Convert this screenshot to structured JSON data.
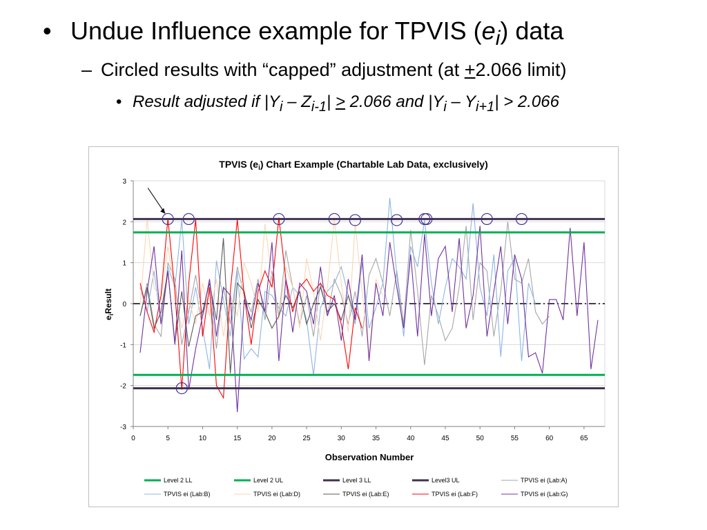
{
  "slide": {
    "bullet1": "Undue Influence example for TPVIS (",
    "bullet1_var": "e",
    "bullet1_sub": "i",
    "bullet1_end": ") data",
    "bullet2_pre": "Circled results with “capped” adjustment (at ",
    "bullet2_pm": "+",
    "bullet2_post": "2.066 limit)",
    "bullet3_a": "Result adjusted if |Y",
    "bullet3_a_sub": "i",
    "bullet3_b": " – Z",
    "bullet3_b_sub": "i-1",
    "bullet3_c": "| ",
    "bullet3_ge": ">",
    "bullet3_d": " 2.066 and |Y",
    "bullet3_d_sub": "i",
    "bullet3_e": " – Y",
    "bullet3_e_sub": "i+1",
    "bullet3_f": "| > 2.066"
  },
  "chart_data": {
    "type": "line",
    "title": "TPVIS (e",
    "title_sub": "i",
    "title_end": ") Chart Example (Chartable Lab Data, exclusively)",
    "xlabel": "Observation Number",
    "ylabel": "e",
    "ylabel_sub": "i",
    "ylabel_end": "Result",
    "xlim": [
      0,
      68
    ],
    "ylim": [
      -3,
      3
    ],
    "xticks": [
      0,
      5,
      10,
      15,
      20,
      25,
      30,
      35,
      40,
      45,
      50,
      55,
      60,
      65
    ],
    "yticks": [
      -3,
      -2,
      -1,
      0,
      1,
      2,
      3
    ],
    "grid": "horizontal",
    "legend_position": "bottom",
    "colors": {
      "level2": "#00b050",
      "level3": "#403151",
      "labA": "#a6a6a6",
      "labB": "#8db4e2",
      "labD": "#fcd5b4",
      "labE": "#595959",
      "labF": "#ff0000",
      "labG": "#7030a0",
      "circle": "#3f2d8f",
      "centerline": "#000000"
    },
    "limits": [
      {
        "name": "Level 2 LL",
        "value": -1.74
      },
      {
        "name": "Level 2 UL",
        "value": 1.74
      },
      {
        "name": "Level 3 LL",
        "value": -2.066
      },
      {
        "name": "Level3 UL",
        "value": 2.066
      }
    ],
    "series": [
      {
        "name": "TPVIS ei (Lab:A)",
        "x_start": 1,
        "values": [
          -0.3,
          0.5,
          -0.5,
          -0.8,
          1.0,
          0.6,
          -1.0,
          -0.2,
          0.7,
          -0.3,
          0.3,
          -1.1,
          0.4,
          -0.5,
          0.9,
          0.2,
          -0.2,
          0.6,
          -0.4,
          0.8,
          -0.3,
          1.3,
          0.4,
          -0.5,
          0.2,
          -0.8,
          0.5,
          -0.3,
          0.6,
          0.2,
          -0.5,
          0.3,
          -0.8,
          0.7,
          1.1,
          0.5,
          -0.3,
          0.8,
          -0.5,
          1.8,
          0.3,
          -1.5,
          0.2,
          -0.3,
          -0.9,
          -0.6,
          0.4,
          1.9,
          -0.4,
          1.0,
          0.8,
          -0.8,
          0.3,
          2.0,
          0.6,
          0.5,
          1.1,
          -0.2,
          -0.5,
          -0.3
        ]
      },
      {
        "name": "TPVIS ei (Lab:B)",
        "x_start": 1,
        "values": [
          0.4,
          -0.2,
          0.8,
          -0.5,
          0.9,
          0.4,
          2.05,
          -0.5,
          0.4,
          -0.6,
          -1.6,
          1.05,
          0.1,
          -0.8,
          0.8,
          -1.35,
          -1.1,
          -1.3,
          0.3,
          0.2,
          -0.1,
          -0.3,
          0.4,
          0.2,
          -0.4,
          -1.75,
          -0.1,
          0.3,
          0.5,
          0.9,
          0.2,
          -0.5,
          1.0,
          -0.6,
          -0.1,
          0.5,
          2.58,
          0.7,
          -0.8,
          1.4,
          0.9,
          2.04,
          0.5,
          -0.5,
          0.4,
          1.1,
          0.9,
          0.6,
          2.45,
          0.4,
          -0.3,
          1.2,
          -1.3,
          0.8,
          1.1,
          -1.4,
          0.5,
          0.0
        ]
      },
      {
        "name": "TPVIS ei (Lab:D)",
        "x_start": 1,
        "values": [
          0.0,
          2.05,
          0.4,
          0.1,
          1.4,
          0.3,
          -0.6,
          0.1,
          -0.5,
          0.5,
          -0.3,
          0.6,
          -0.8,
          0.2,
          -0.3,
          1.0,
          0.5,
          -0.2,
          1.95,
          0.6,
          -0.4,
          0.9,
          0.4,
          -0.6,
          1.1,
          0.3,
          -0.9,
          0.4,
          2.05,
          0.5,
          -0.7,
          1.95,
          0.3,
          -1.3,
          0.6,
          0.2
        ]
      },
      {
        "name": "TPVIS ei (Lab:E)",
        "x_start": 1,
        "values": [
          -0.3,
          0.4,
          -0.6,
          -0.2,
          0.8,
          -0.95,
          0.3,
          -1.05,
          -0.3,
          -0.2,
          0.5,
          -0.4,
          1.6,
          -1.7,
          0.5,
          0.3,
          -0.6,
          0.1,
          -0.2,
          -0.6,
          -0.3,
          0.2,
          -0.1,
          0.3,
          -0.5,
          0.0,
          0.4,
          -0.2,
          0.0,
          -0.4,
          0.2,
          -0.3
        ]
      },
      {
        "name": "TPVIS ei (Lab:F)",
        "x_start": 1,
        "values": [
          0.5,
          -0.2,
          -0.7,
          0.2,
          2.08,
          0.3,
          -2.1,
          0.5,
          2.06,
          -0.8,
          0.4,
          -2.0,
          -2.3,
          0.3,
          2.06,
          0.2,
          -1.0,
          0.3,
          0.8,
          0.4,
          2.1,
          0.6,
          -0.2,
          0.4,
          0.6,
          0.3,
          0.5,
          0.2,
          0.1,
          -0.5,
          -1.6,
          -0.1,
          -0.6
        ]
      },
      {
        "name": "TPVIS ei (Lab:G)",
        "x_start": 1,
        "values": [
          -1.2,
          0.3,
          1.4,
          -0.5,
          0.8,
          -1.0,
          1.3,
          -2.1,
          -1.1,
          -0.3,
          0.6,
          -0.8,
          0.4,
          0.2,
          -2.65,
          0.1,
          -0.4,
          0.5,
          -0.2,
          1.5,
          -1.4,
          0.6,
          -0.7,
          0.5,
          0.3,
          -0.5,
          0.9,
          -0.3,
          0.2,
          -0.9,
          0.6,
          -0.4,
          1.2,
          -1.4,
          0.5,
          -0.3,
          1.5,
          0.4,
          -0.6,
          1.2,
          -0.8,
          1.7,
          -0.3,
          1.1,
          1.4,
          -0.2,
          1.6,
          -0.6,
          0.2,
          1.9,
          -0.8,
          0.3,
          1.4,
          -0.5,
          1.2,
          0.6,
          -1.3,
          -1.2,
          -1.7,
          0.1,
          0.1,
          -0.4,
          1.85,
          -0.3,
          1.5,
          -1.6,
          -0.4
        ]
      }
    ],
    "circled_points": [
      {
        "x": 5,
        "y": 2.066
      },
      {
        "x": 8,
        "y": 2.066
      },
      {
        "x": 7,
        "y": -2.066
      },
      {
        "x": 21,
        "y": 2.066
      },
      {
        "x": 29,
        "y": 2.066
      },
      {
        "x": 32,
        "y": 2.04
      },
      {
        "x": 38,
        "y": 2.04
      },
      {
        "x": 42,
        "y": 2.066
      },
      {
        "x": 42.3,
        "y": 2.066
      },
      {
        "x": 51,
        "y": 2.066
      },
      {
        "x": 56,
        "y": 2.066
      }
    ],
    "arrow_target": {
      "x": 4.6,
      "y": 2.2
    }
  }
}
